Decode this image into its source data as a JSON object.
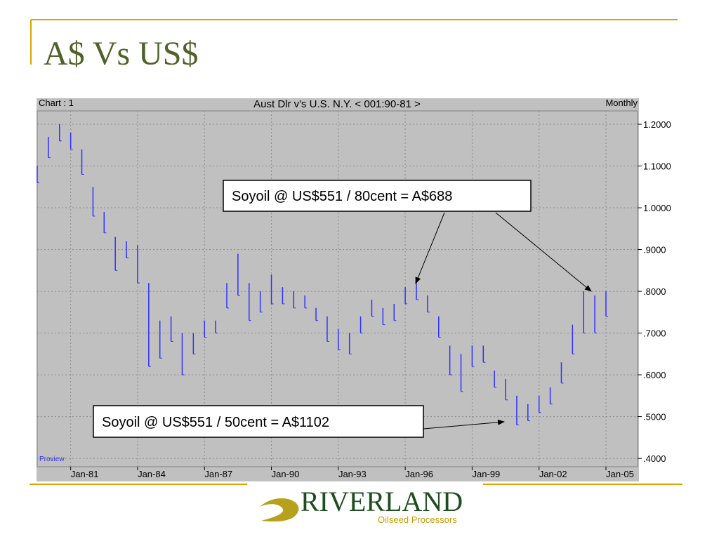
{
  "slide": {
    "title": "A$ Vs US$",
    "logo": {
      "name": "RIVERLAND",
      "tagline": "Oilseed Processors"
    }
  },
  "chart_data": {
    "type": "range-bar",
    "chart_label": "Chart : 1",
    "title": "Aust Dlr v's U.S. N.Y. < 001:90-81 >",
    "frequency": "Monthly",
    "source": "Proview",
    "color": "#3030ff",
    "grid": true,
    "x": [
      "Jul-79",
      "Jan-80",
      "Jul-80",
      "Jan-81",
      "Jul-81",
      "Jan-82",
      "Jul-82",
      "Jan-83",
      "Jul-83",
      "Jan-84",
      "Jul-84",
      "Jan-85",
      "Jul-85",
      "Jan-86",
      "Jul-86",
      "Jan-87",
      "Jul-87",
      "Jan-88",
      "Jul-88",
      "Jan-89",
      "Jul-89",
      "Jan-90",
      "Jul-90",
      "Jan-91",
      "Jul-91",
      "Jan-92",
      "Jul-92",
      "Jan-93",
      "Jul-93",
      "Jan-94",
      "Jul-94",
      "Jan-95",
      "Jul-95",
      "Jan-96",
      "Jul-96",
      "Jan-97",
      "Jul-97",
      "Jan-98",
      "Jul-98",
      "Jan-99",
      "Jul-99",
      "Jan-00",
      "Jul-00",
      "Jan-01",
      "Jul-01",
      "Jan-02",
      "Jul-02",
      "Jan-03",
      "Jul-03",
      "Jan-04",
      "Jul-04",
      "Jan-05"
    ],
    "high": [
      1.1,
      1.17,
      1.2,
      1.18,
      1.14,
      1.05,
      0.99,
      0.93,
      0.92,
      0.91,
      0.82,
      0.73,
      0.74,
      0.7,
      0.7,
      0.73,
      0.73,
      0.82,
      0.89,
      0.82,
      0.8,
      0.84,
      0.81,
      0.8,
      0.79,
      0.76,
      0.74,
      0.71,
      0.7,
      0.74,
      0.78,
      0.76,
      0.77,
      0.81,
      0.82,
      0.79,
      0.74,
      0.67,
      0.65,
      0.67,
      0.67,
      0.61,
      0.59,
      0.55,
      0.53,
      0.55,
      0.57,
      0.63,
      0.72,
      0.8,
      0.79,
      0.8
    ],
    "low": [
      1.06,
      1.12,
      1.16,
      1.14,
      1.08,
      0.98,
      0.94,
      0.85,
      0.88,
      0.82,
      0.62,
      0.64,
      0.68,
      0.6,
      0.65,
      0.69,
      0.7,
      0.76,
      0.79,
      0.73,
      0.75,
      0.77,
      0.77,
      0.76,
      0.76,
      0.73,
      0.68,
      0.66,
      0.65,
      0.7,
      0.74,
      0.72,
      0.73,
      0.77,
      0.78,
      0.75,
      0.69,
      0.6,
      0.56,
      0.62,
      0.63,
      0.57,
      0.54,
      0.48,
      0.49,
      0.51,
      0.53,
      0.58,
      0.65,
      0.7,
      0.7,
      0.74
    ],
    "xlim": [
      "Jul-79",
      "Jun-06"
    ],
    "xticks": [
      "Jan-81",
      "Jan-84",
      "Jan-87",
      "Jan-90",
      "Jan-93",
      "Jan-96",
      "Jan-99",
      "Jan-02",
      "Jan-05"
    ],
    "ylim": [
      0.38,
      1.232
    ],
    "yticks": [
      {
        "value": 0.4,
        "label": ".4000"
      },
      {
        "value": 0.5,
        "label": ".5000"
      },
      {
        "value": 0.6,
        "label": ".6000"
      },
      {
        "value": 0.7,
        "label": ".7000"
      },
      {
        "value": 0.8,
        "label": ".8000"
      },
      {
        "value": 0.9,
        "label": ".9000"
      },
      {
        "value": 1.0,
        "label": "1.0000"
      },
      {
        "value": 1.1,
        "label": "1.1000"
      },
      {
        "value": 1.2,
        "label": "1.2000"
      }
    ],
    "annotations": [
      "Soyoil @ US$551 / 80cent = A$688",
      "Soyoil @ US$551 / 50cent = A$1102"
    ]
  }
}
